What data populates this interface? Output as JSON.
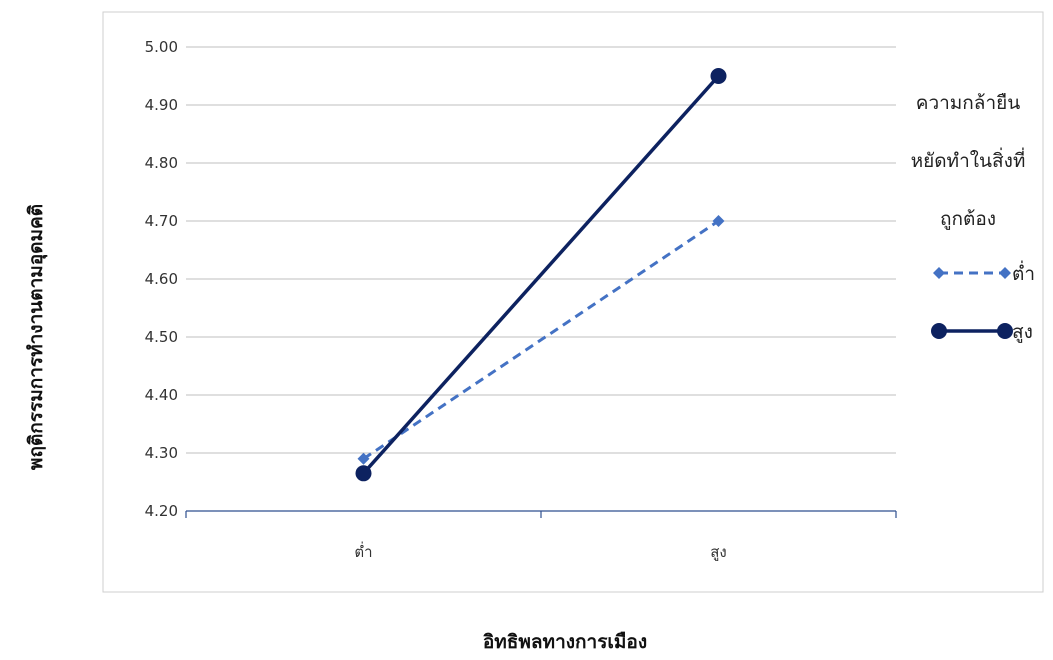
{
  "chart_data": {
    "type": "line",
    "xlabel": "อิทธิพลทางการเมือง",
    "ylabel": "พฤติกรรมการทำงานตามอุดมคติ",
    "categories": [
      "ต่ำ",
      "สูง"
    ],
    "ylim": [
      4.2,
      5.0
    ],
    "yticks": [
      "4.20",
      "4.30",
      "4.40",
      "4.50",
      "4.60",
      "4.70",
      "4.80",
      "4.90",
      "5.00"
    ],
    "grid": true,
    "legend_title": [
      "ความกล้ายืน",
      "หยัดทำในสิ่งที่",
      "ถูกต้อง"
    ],
    "legend_placement": "right",
    "series": [
      {
        "name": "ต่ำ",
        "values": [
          4.29,
          4.7
        ],
        "color": "#4472C4",
        "style": "dashed",
        "marker": "diamond"
      },
      {
        "name": "สูง",
        "values": [
          4.265,
          4.95
        ],
        "color": "#0D2260",
        "style": "solid",
        "marker": "circle"
      }
    ]
  }
}
